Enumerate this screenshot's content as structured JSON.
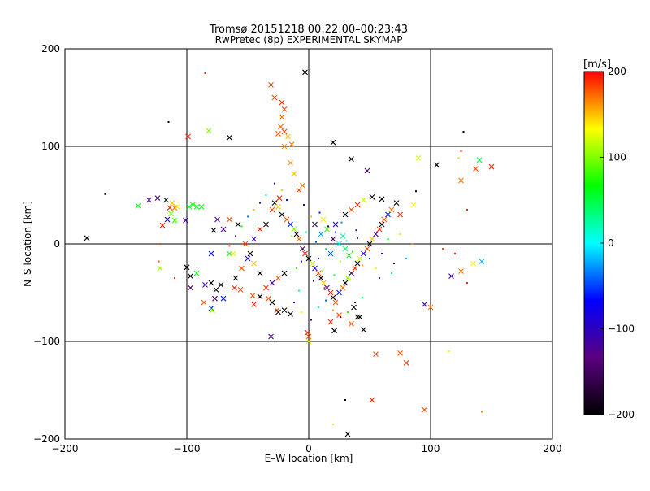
{
  "chart_data": {
    "type": "scatter",
    "title": "Tromsø 20151218 00:22:00–00:23:43",
    "subtitle": "RwPretec (8p) EXPERIMENTAL SKYMAP",
    "xlabel": "E–W location [km]",
    "ylabel": "N–S location [km]",
    "xlim": [
      -200,
      200
    ],
    "ylim": [
      -200,
      200
    ],
    "xticks": [
      -200,
      -100,
      0,
      100,
      200
    ],
    "yticks": [
      -200,
      -100,
      0,
      100,
      200
    ],
    "grid": true,
    "colorbar": {
      "label": "[m/s]",
      "range": [
        -200,
        200
      ],
      "ticks": [
        200,
        100,
        0,
        -100,
        -200
      ],
      "colors": [
        "#000000",
        "#5a0080",
        "#0000ff",
        "#00ffff",
        "#00ff00",
        "#ffff00",
        "#ff0000"
      ]
    },
    "points": [
      [
        -3,
        176,
        -200,
        "x"
      ],
      [
        -31,
        163,
        180,
        "x"
      ],
      [
        -28,
        150,
        180,
        "x"
      ],
      [
        -22,
        145,
        190,
        "x"
      ],
      [
        -20,
        138,
        180,
        "x"
      ],
      [
        -22,
        130,
        170,
        "x"
      ],
      [
        -23,
        120,
        175,
        "x"
      ],
      [
        -20,
        115,
        185,
        "x"
      ],
      [
        -17,
        110,
        150,
        "x"
      ],
      [
        -20,
        100,
        160,
        "x"
      ],
      [
        -15,
        83,
        160,
        "x"
      ],
      [
        -12,
        72,
        150,
        "x"
      ],
      [
        -5,
        60,
        170,
        "x"
      ],
      [
        -8,
        55,
        180,
        "x"
      ],
      [
        -24,
        47,
        190,
        "x"
      ],
      [
        -14,
        102,
        170,
        "x"
      ],
      [
        -25,
        113,
        180,
        "x"
      ],
      [
        -82,
        116,
        100,
        "x"
      ],
      [
        -65,
        109,
        -200,
        "x"
      ],
      [
        -99,
        110,
        190,
        "x"
      ],
      [
        -85,
        175,
        190,
        "."
      ],
      [
        -115,
        125,
        -200,
        "."
      ],
      [
        -182,
        6,
        -200,
        "x"
      ],
      [
        -167,
        51,
        -200,
        "."
      ],
      [
        -140,
        39,
        60,
        "x"
      ],
      [
        -114,
        37,
        190,
        "x"
      ],
      [
        -110,
        37,
        170,
        "x"
      ],
      [
        -112,
        42,
        150,
        "x"
      ],
      [
        -108,
        38,
        140,
        "x"
      ],
      [
        -124,
        47,
        -120,
        "x"
      ],
      [
        -131,
        45,
        -120,
        "x"
      ],
      [
        -117,
        45,
        -200,
        "x"
      ],
      [
        -113,
        31,
        100,
        "x"
      ],
      [
        -110,
        24,
        80,
        "x"
      ],
      [
        -98,
        38,
        60,
        "x"
      ],
      [
        -95,
        40,
        70,
        "x"
      ],
      [
        -92,
        38,
        60,
        "x"
      ],
      [
        -88,
        38,
        60,
        "x"
      ],
      [
        -101,
        24,
        -120,
        "x"
      ],
      [
        -116,
        25,
        -90,
        "x"
      ],
      [
        -120,
        19,
        190,
        "x"
      ],
      [
        -122,
        0,
        180,
        "."
      ],
      [
        -122,
        -25,
        110,
        "x"
      ],
      [
        -123,
        -18,
        180,
        "."
      ],
      [
        -110,
        -35,
        190,
        "."
      ],
      [
        -100,
        -24,
        -200,
        "x"
      ],
      [
        -97,
        -33,
        -200,
        "x"
      ],
      [
        -92,
        -30,
        60,
        "x"
      ],
      [
        -80,
        -10,
        -70,
        "x"
      ],
      [
        -97,
        -45,
        -150,
        "x"
      ],
      [
        -85,
        -42,
        -120,
        "x"
      ],
      [
        -80,
        -40,
        -200,
        "x"
      ],
      [
        -76,
        -47,
        -200,
        "x"
      ],
      [
        -72,
        -42,
        -200,
        "x"
      ],
      [
        -70,
        -56,
        -60,
        "x"
      ],
      [
        -77,
        -56,
        -150,
        "x"
      ],
      [
        -86,
        -60,
        180,
        "x"
      ],
      [
        -80,
        -66,
        -60,
        "x"
      ],
      [
        -79,
        -68,
        100,
        "x"
      ],
      [
        -61,
        -45,
        190,
        "x"
      ],
      [
        -56,
        -47,
        180,
        "x"
      ],
      [
        -46,
        -53,
        180,
        "x"
      ],
      [
        -45,
        -62,
        190,
        "x"
      ],
      [
        -40,
        -54,
        -200,
        "x"
      ],
      [
        -33,
        -56,
        180,
        "x"
      ],
      [
        -30,
        -60,
        -200,
        "x"
      ],
      [
        -26,
        -68,
        180,
        "x"
      ],
      [
        -25,
        -70,
        -200,
        "x"
      ],
      [
        -20,
        -68,
        -200,
        "x"
      ],
      [
        -15,
        -72,
        -200,
        "x"
      ],
      [
        -31,
        -95,
        -120,
        "x"
      ],
      [
        -1,
        -91,
        190,
        "x"
      ],
      [
        0,
        -95,
        180,
        "x"
      ],
      [
        0,
        -100,
        130,
        "x"
      ],
      [
        21,
        -89,
        -200,
        "x"
      ],
      [
        18,
        -80,
        190,
        "x"
      ],
      [
        25,
        -73,
        180,
        "x"
      ],
      [
        35,
        -82,
        180,
        "x"
      ],
      [
        37,
        -65,
        -200,
        "x"
      ],
      [
        42,
        -75,
        -200,
        "x"
      ],
      [
        45,
        -88,
        -200,
        "x"
      ],
      [
        55,
        -113,
        180,
        "x"
      ],
      [
        52,
        -160,
        190,
        "x"
      ],
      [
        75,
        -112,
        180,
        "x"
      ],
      [
        80,
        -122,
        190,
        "x"
      ],
      [
        95,
        -62,
        -120,
        "x"
      ],
      [
        95,
        -170,
        180,
        "x"
      ],
      [
        40,
        -75,
        -200,
        "x"
      ],
      [
        100,
        -65,
        170,
        "x"
      ],
      [
        115,
        -110,
        130,
        "."
      ],
      [
        142,
        -172,
        170,
        "."
      ],
      [
        20,
        -185,
        120,
        "."
      ],
      [
        32,
        -195,
        -200,
        "x"
      ],
      [
        30,
        -160,
        -200,
        "."
      ],
      [
        117,
        -33,
        -120,
        "x"
      ],
      [
        125,
        -28,
        170,
        "x"
      ],
      [
        135,
        -20,
        130,
        "x"
      ],
      [
        142,
        -18,
        -20,
        "x"
      ],
      [
        120,
        -10,
        190,
        "."
      ],
      [
        110,
        -5,
        180,
        "."
      ],
      [
        130,
        -40,
        190,
        "."
      ],
      [
        123,
        88,
        150,
        "."
      ],
      [
        105,
        81,
        -200,
        "x"
      ],
      [
        127,
        115,
        -200,
        "."
      ],
      [
        150,
        79,
        190,
        "x"
      ],
      [
        140,
        86,
        50,
        "x"
      ],
      [
        137,
        77,
        180,
        "x"
      ],
      [
        125,
        65,
        170,
        "x"
      ],
      [
        125,
        95,
        190,
        "."
      ],
      [
        130,
        35,
        190,
        "."
      ],
      [
        90,
        88,
        120,
        "x"
      ],
      [
        88,
        54,
        -200,
        "."
      ],
      [
        86,
        40,
        130,
        "x"
      ],
      [
        75,
        30,
        190,
        "x"
      ],
      [
        72,
        42,
        -200,
        "x"
      ],
      [
        60,
        46,
        -200,
        "x"
      ],
      [
        52,
        48,
        -200,
        "x"
      ],
      [
        45,
        45,
        120,
        "x"
      ],
      [
        40,
        40,
        190,
        "x"
      ],
      [
        35,
        35,
        180,
        "x"
      ],
      [
        30,
        30,
        -200,
        "x"
      ],
      [
        22,
        20,
        -90,
        "x"
      ],
      [
        20,
        104,
        -200,
        "x"
      ],
      [
        35,
        87,
        -200,
        "x"
      ],
      [
        48,
        75,
        -150,
        "x"
      ],
      [
        -65,
        -10,
        60,
        "x"
      ],
      [
        -70,
        15,
        -120,
        "x"
      ],
      [
        -78,
        14,
        -200,
        "x"
      ],
      [
        -75,
        25,
        -120,
        "x"
      ],
      [
        -65,
        25,
        180,
        "x"
      ],
      [
        -58,
        20,
        -200,
        "x"
      ],
      [
        -52,
        0,
        180,
        "x"
      ],
      [
        -48,
        -10,
        -200,
        "x"
      ],
      [
        -45,
        5,
        -90,
        "x"
      ],
      [
        -40,
        15,
        190,
        "x"
      ],
      [
        -35,
        20,
        -200,
        "x"
      ],
      [
        -30,
        35,
        180,
        "x"
      ],
      [
        -28,
        42,
        -200,
        "x"
      ],
      [
        -25,
        38,
        150,
        "x"
      ],
      [
        -22,
        30,
        -200,
        "x"
      ],
      [
        -18,
        25,
        180,
        "x"
      ],
      [
        -15,
        20,
        -60,
        "x"
      ],
      [
        -12,
        15,
        100,
        "x"
      ],
      [
        -10,
        10,
        -200,
        "x"
      ],
      [
        -8,
        5,
        170,
        "x"
      ],
      [
        -5,
        -5,
        -150,
        "x"
      ],
      [
        -3,
        -10,
        190,
        "x"
      ],
      [
        0,
        -15,
        -200,
        "x"
      ],
      [
        3,
        -20,
        120,
        "x"
      ],
      [
        5,
        -25,
        -90,
        "x"
      ],
      [
        8,
        -30,
        180,
        "x"
      ],
      [
        10,
        -35,
        -200,
        "x"
      ],
      [
        12,
        -40,
        150,
        "x"
      ],
      [
        15,
        -45,
        -120,
        "x"
      ],
      [
        18,
        -50,
        190,
        "x"
      ],
      [
        20,
        -55,
        -200,
        "x"
      ],
      [
        22,
        -60,
        180,
        "x"
      ],
      [
        25,
        -50,
        -60,
        "x"
      ],
      [
        28,
        -45,
        170,
        "x"
      ],
      [
        30,
        -40,
        -200,
        "x"
      ],
      [
        32,
        -35,
        100,
        "x"
      ],
      [
        35,
        -30,
        -150,
        "x"
      ],
      [
        38,
        -25,
        190,
        "x"
      ],
      [
        40,
        -20,
        -200,
        "x"
      ],
      [
        42,
        -15,
        120,
        "x"
      ],
      [
        45,
        -10,
        -90,
        "x"
      ],
      [
        48,
        -5,
        180,
        "x"
      ],
      [
        50,
        0,
        -200,
        "x"
      ],
      [
        52,
        5,
        150,
        "x"
      ],
      [
        55,
        10,
        -120,
        "x"
      ],
      [
        58,
        15,
        190,
        "x"
      ],
      [
        60,
        20,
        -200,
        "x"
      ],
      [
        62,
        25,
        180,
        "x"
      ],
      [
        65,
        30,
        -60,
        "x"
      ],
      [
        68,
        35,
        170,
        "x"
      ],
      [
        -20,
        -30,
        -200,
        "x"
      ],
      [
        -25,
        -35,
        180,
        "x"
      ],
      [
        -30,
        -40,
        -120,
        "x"
      ],
      [
        -35,
        -45,
        190,
        "x"
      ],
      [
        -40,
        -30,
        -200,
        "x"
      ],
      [
        -45,
        -20,
        150,
        "x"
      ],
      [
        -50,
        -15,
        -90,
        "x"
      ],
      [
        -55,
        -25,
        180,
        "x"
      ],
      [
        -60,
        -35,
        -200,
        "x"
      ],
      [
        -62,
        -10,
        120,
        "x"
      ],
      [
        10,
        10,
        -20,
        "x"
      ],
      [
        15,
        15,
        80,
        "x"
      ],
      [
        20,
        5,
        -150,
        "x"
      ],
      [
        25,
        0,
        0,
        "x"
      ],
      [
        30,
        -5,
        40,
        "x"
      ],
      [
        5,
        20,
        -180,
        "x"
      ],
      [
        12,
        25,
        140,
        "x"
      ],
      [
        18,
        -10,
        -40,
        "x"
      ],
      [
        28,
        8,
        20,
        "x"
      ],
      [
        33,
        -12,
        60,
        "x"
      ],
      [
        8,
        -15,
        -100,
        "."
      ],
      [
        14,
        -5,
        30,
        "."
      ],
      [
        22,
        12,
        -70,
        "."
      ],
      [
        26,
        -18,
        110,
        "."
      ],
      [
        31,
        3,
        -10,
        "."
      ],
      [
        36,
        -8,
        70,
        "."
      ],
      [
        40,
        6,
        -130,
        "."
      ],
      [
        44,
        -22,
        160,
        "."
      ],
      [
        6,
        2,
        -50,
        "."
      ],
      [
        11,
        -28,
        90,
        "."
      ],
      [
        16,
        18,
        -160,
        "."
      ],
      [
        21,
        -32,
        50,
        "."
      ],
      [
        27,
        22,
        -30,
        "."
      ],
      [
        34,
        -36,
        130,
        "."
      ],
      [
        39,
        14,
        -80,
        "."
      ],
      [
        -2,
        12,
        10,
        "."
      ],
      [
        -6,
        -18,
        -110,
        "."
      ],
      [
        2,
        28,
        150,
        "."
      ],
      [
        -10,
        -25,
        70,
        "."
      ],
      [
        4,
        -38,
        -170,
        "."
      ],
      [
        -14,
        8,
        100,
        "."
      ],
      [
        9,
        32,
        -60,
        "."
      ],
      [
        13,
        -45,
        180,
        "."
      ],
      [
        -4,
        40,
        -140,
        "."
      ],
      [
        -8,
        -48,
        30,
        "."
      ],
      [
        50,
        -15,
        -50,
        "."
      ],
      [
        55,
        -25,
        140,
        "."
      ],
      [
        60,
        -10,
        -90,
        "."
      ],
      [
        65,
        5,
        60,
        "."
      ],
      [
        70,
        -20,
        -180,
        "."
      ],
      [
        75,
        10,
        110,
        "."
      ],
      [
        80,
        -15,
        -20,
        "."
      ],
      [
        85,
        0,
        160,
        "."
      ],
      [
        58,
        -35,
        -120,
        "."
      ],
      [
        68,
        -30,
        40,
        "."
      ],
      [
        -18,
        45,
        -60,
        "."
      ],
      [
        -22,
        55,
        110,
        "."
      ],
      [
        -28,
        62,
        -160,
        "."
      ],
      [
        -35,
        50,
        30,
        "."
      ],
      [
        -40,
        42,
        -90,
        "."
      ],
      [
        -45,
        35,
        150,
        "."
      ],
      [
        -50,
        28,
        -30,
        "."
      ],
      [
        -55,
        18,
        70,
        "."
      ],
      [
        -60,
        8,
        -130,
        "."
      ],
      [
        -65,
        -2,
        180,
        "."
      ],
      [
        -12,
        -60,
        -80,
        "."
      ],
      [
        -6,
        -70,
        130,
        "."
      ],
      [
        2,
        -78,
        -150,
        "."
      ],
      [
        8,
        -65,
        20,
        "."
      ],
      [
        14,
        -58,
        -40,
        "."
      ],
      [
        20,
        -68,
        160,
        "."
      ],
      [
        26,
        -75,
        -100,
        "."
      ],
      [
        32,
        -70,
        80,
        "."
      ],
      [
        38,
        -60,
        -170,
        "."
      ],
      [
        44,
        -55,
        40,
        "."
      ]
    ]
  }
}
